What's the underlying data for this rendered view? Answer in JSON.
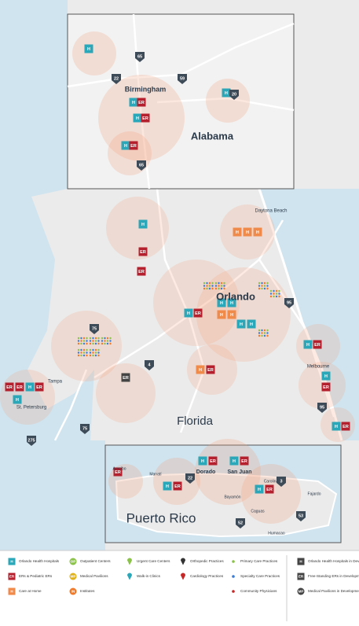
{
  "labels": [
    "Birmingham",
    "Alabama",
    "Daytona Beach",
    "Orlando",
    "Florida",
    "Tampa",
    "St. Petersburg",
    "Melbourne",
    "Puerto Rico",
    "San Juan",
    "Dorado",
    "Bayamón",
    "Caguas",
    "Arecibo",
    "Manatí",
    "Carolina",
    "Fajardo",
    "Humacao"
  ],
  "highways": [
    "65",
    "59",
    "22",
    "20",
    "65",
    "75",
    "4",
    "95",
    "75",
    "275",
    "95",
    "22",
    "3",
    "52",
    "53"
  ],
  "legend": {
    "items": [
      {
        "text": "Orlando Health Hospitals",
        "icon": "H"
      },
      {
        "text": "ERs & Pediatric ERs",
        "icon": "ER"
      },
      {
        "text": "Care at Home",
        "icon": "H"
      },
      {
        "text": "Outpatient Centers",
        "icon": "OP"
      },
      {
        "text": "Medical Pavilions",
        "icon": "MP"
      },
      {
        "text": "Institutes",
        "icon": "IN"
      },
      {
        "text": "Urgent Care Centers"
      },
      {
        "text": "Walk-in Clinics"
      },
      {
        "text": "Orthopedic Practices"
      },
      {
        "text": "Cardiology Practices"
      },
      {
        "text": "Primary Care Practices"
      },
      {
        "text": "Specialty Care Practices"
      },
      {
        "text": "Community Physicians"
      },
      {
        "text": "Orlando Health Hospitals in Development",
        "icon": "H"
      },
      {
        "text": "Free-Standing ERs in Development",
        "icon": "ER"
      },
      {
        "text": "Medical Pavilions in Development",
        "icon": "MP"
      }
    ]
  }
}
